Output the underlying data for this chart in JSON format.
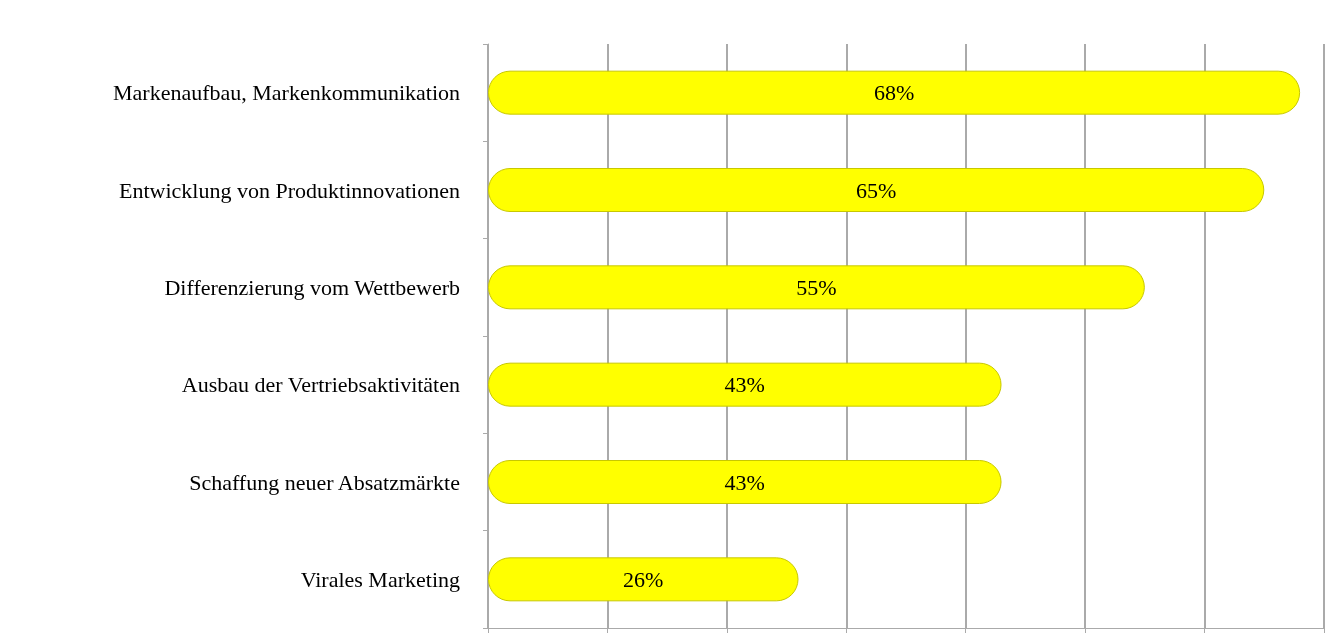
{
  "chart_data": {
    "type": "bar",
    "orientation": "horizontal",
    "categories": [
      "Markenaufbau, Markenkommunikation",
      "Entwicklung von Produktinnovationen",
      "Differenzierung vom Wettbewerb",
      "Ausbau der Vertriebsaktivitäten",
      "Schaffung neuer Absatzmärkte",
      "Virales Marketing"
    ],
    "values": [
      68,
      65,
      55,
      43,
      43,
      26
    ],
    "value_labels": [
      "68%",
      "65%",
      "55%",
      "43%",
      "43%",
      "26%"
    ],
    "color": "#ffff00",
    "xlim": [
      0,
      70
    ],
    "xticks": [
      {
        "value": 0,
        "label": null
      },
      {
        "value": 10,
        "label": null
      },
      {
        "value": 20,
        "label": null
      },
      {
        "value": 30,
        "label": null
      },
      {
        "value": 40,
        "label": null
      },
      {
        "value": 50,
        "label": null
      },
      {
        "value": 60,
        "label": null
      },
      {
        "value": 70,
        "label": null
      }
    ],
    "tick_labels": "y",
    "grid": "x"
  }
}
